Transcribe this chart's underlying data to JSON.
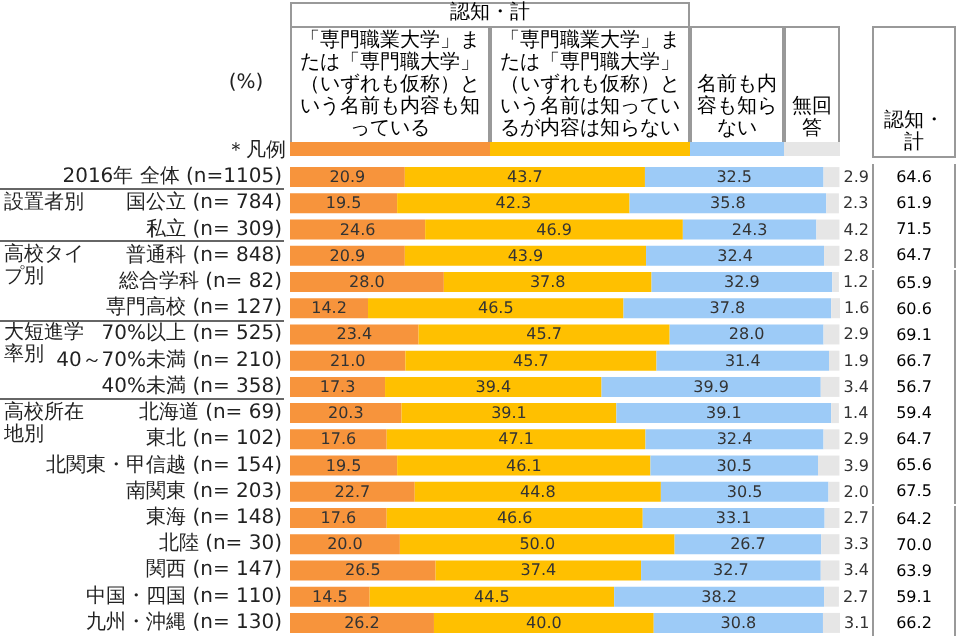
{
  "chart_data": {
    "type": "bar",
    "orientation": "horizontal",
    "stacked": true,
    "categories": [
      "2016年 全体 (n=1105)",
      "国公立 (n= 784)",
      "私立 (n= 309)",
      "普通科 (n= 848)",
      "総合学科 (n= 82)",
      "専門高校 (n= 127)",
      "70%以上 (n= 525)",
      "40～70%未満 (n= 210)",
      "40%未満 (n= 358)",
      "北海道 (n= 69)",
      "東北 (n= 102)",
      "北関東・甲信越 (n= 154)",
      "南関東 (n= 203)",
      "東海 (n= 148)",
      "北陸 (n= 30)",
      "関西 (n= 147)",
      "中国・四国 (n= 110)",
      "九州・沖縄 (n= 130)"
    ],
    "series": [
      {
        "name": "「専門職業大学」または「専門職大学」（いずれも仮称）という名前も内容も知っている",
        "color": "#f7943c",
        "values": [
          20.9,
          19.5,
          24.6,
          20.9,
          28.0,
          14.2,
          23.4,
          21.0,
          17.3,
          20.3,
          17.6,
          19.5,
          22.7,
          17.6,
          20.0,
          26.5,
          14.5,
          26.2
        ],
        "value_labels": [
          "20.9",
          "19.5",
          "24.6",
          "20.9",
          "28.0",
          "14.2",
          "23.4",
          "21.0",
          "17.3",
          "20.3",
          "17.6",
          "19.5",
          "22.7",
          "17.6",
          "20.0",
          "26.5",
          "14.5",
          "26.2"
        ]
      },
      {
        "name": "「専門職業大学」または「専門職大学」（いずれも仮称）という名前は知っているが内容は知らない",
        "color": "#ffc000",
        "values": [
          43.7,
          42.3,
          46.9,
          43.9,
          37.8,
          46.5,
          45.7,
          45.7,
          39.4,
          39.1,
          47.1,
          46.1,
          44.8,
          46.6,
          50.0,
          37.4,
          44.5,
          40.0
        ],
        "value_labels": [
          "43.7",
          "42.3",
          "46.9",
          "43.9",
          "37.8",
          "46.5",
          "45.7",
          "45.7",
          "39.4",
          "39.1",
          "47.1",
          "46.1",
          "44.8",
          "46.6",
          "50.0",
          "37.4",
          "44.5",
          "40.0"
        ]
      },
      {
        "name": "名前も内容も知らない",
        "color": "#9dcbf7",
        "values": [
          32.5,
          35.8,
          24.3,
          32.4,
          32.9,
          37.8,
          28.0,
          31.4,
          39.9,
          39.1,
          32.4,
          30.5,
          30.5,
          33.1,
          26.7,
          32.7,
          38.2,
          30.8
        ],
        "value_labels": [
          "32.5",
          "35.8",
          "24.3",
          "32.4",
          "32.9",
          "37.8",
          "28.0",
          "31.4",
          "39.9",
          "39.1",
          "32.4",
          "30.5",
          "30.5",
          "33.1",
          "26.7",
          "32.7",
          "38.2",
          "30.8"
        ]
      },
      {
        "name": "無回答",
        "color": "#e6e6e6",
        "values": [
          2.9,
          2.3,
          4.2,
          2.8,
          1.2,
          1.6,
          2.9,
          1.9,
          3.4,
          1.4,
          2.9,
          3.9,
          2.0,
          2.7,
          3.3,
          3.4,
          2.7,
          3.1
        ],
        "value_labels": [
          "2.9",
          "2.3",
          "4.2",
          "2.8",
          "1.2",
          "1.6",
          "2.9",
          "1.9",
          "3.4",
          "1.4",
          "2.9",
          "3.9",
          "2.0",
          "2.7",
          "3.3",
          "3.4",
          "2.7",
          "3.1"
        ]
      }
    ],
    "annotations": [
      "認知・計",
      "(%)",
      "＊凡例",
      "認知・計",
      "設置者別",
      "高校タイプ別",
      "大短進学率別",
      "高校所在地別",
      "64.6",
      "61.9",
      "71.5",
      "64.7",
      "65.9",
      "60.6",
      "69.1",
      "66.7",
      "56.7",
      "59.4",
      "64.7",
      "65.6",
      "67.5",
      "64.2",
      "70.0",
      "63.9",
      "59.1",
      "66.2"
    ]
  }
}
